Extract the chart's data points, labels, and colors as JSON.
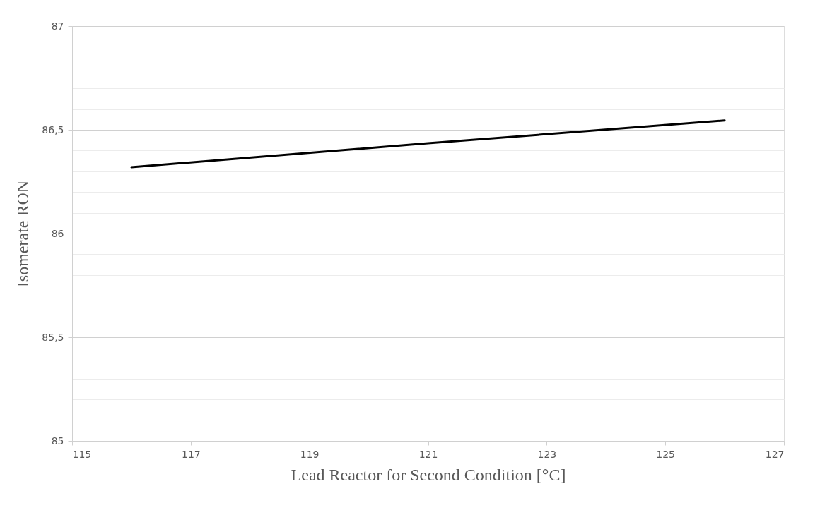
{
  "chart_data": {
    "type": "line",
    "xlabel": "Lead Reactor for Second Condition [°C]",
    "ylabel": "Isomerate RON",
    "x": [
      116,
      121,
      126
    ],
    "series": [
      {
        "color": "#000000",
        "values": [
          86.32,
          86.435,
          86.545
        ]
      }
    ],
    "xlim": [
      115,
      127
    ],
    "xticks": [
      115,
      117,
      119,
      121,
      123,
      125,
      127
    ],
    "ylim": [
      85,
      87
    ],
    "yticks": [
      {
        "value": 85,
        "label": "85"
      },
      {
        "value": 85.1,
        "label": null
      },
      {
        "value": 85.2,
        "label": null
      },
      {
        "value": 85.3,
        "label": null
      },
      {
        "value": 85.4,
        "label": null
      },
      {
        "value": 85.5,
        "label": "85,5"
      },
      {
        "value": 85.6,
        "label": null
      },
      {
        "value": 85.7,
        "label": null
      },
      {
        "value": 85.8,
        "label": null
      },
      {
        "value": 85.9,
        "label": null
      },
      {
        "value": 86,
        "label": "86"
      },
      {
        "value": 86.1,
        "label": null
      },
      {
        "value": 86.2,
        "label": null
      },
      {
        "value": 86.3,
        "label": null
      },
      {
        "value": 86.4,
        "label": null
      },
      {
        "value": 86.5,
        "label": "86,5"
      },
      {
        "value": 86.6,
        "label": null
      },
      {
        "value": 86.7,
        "label": null
      },
      {
        "value": 86.8,
        "label": null
      },
      {
        "value": 86.9,
        "label": null
      },
      {
        "value": 87,
        "label": "87"
      }
    ],
    "grid": "y",
    "marker": "none",
    "line_style": "solid"
  }
}
